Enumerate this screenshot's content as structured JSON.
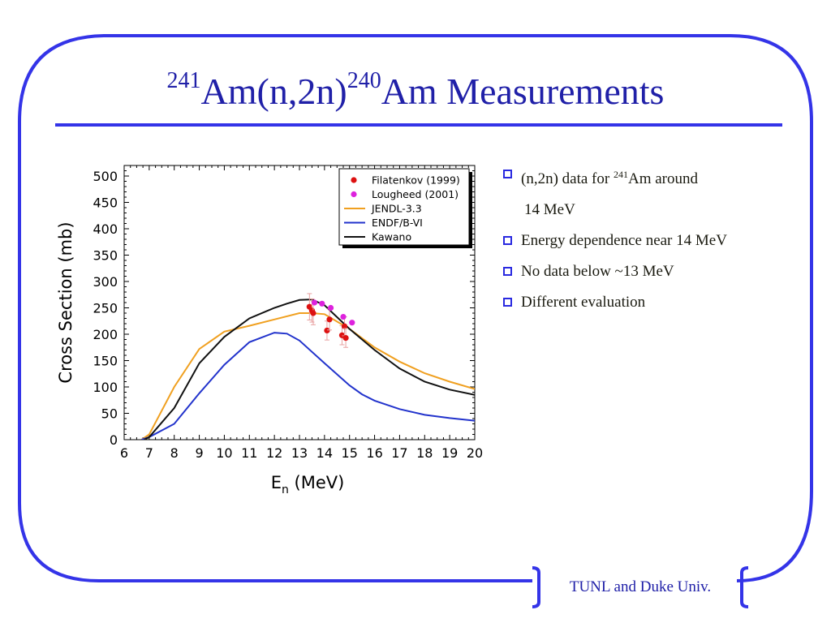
{
  "slide": {
    "title_sup1": "241",
    "title_part1": "Am(n,2n)",
    "title_sup2": "240",
    "title_part2": "Am Measurements",
    "bullets": [
      {
        "text_pre": "(n,2n) data for ",
        "sup": "241",
        "text_post": "Am around",
        "cont": "14 MeV"
      },
      {
        "text": "Energy dependence near 14 MeV"
      },
      {
        "text": "No data below ~13 MeV"
      },
      {
        "text": "Different evaluation"
      }
    ],
    "footer": "TUNL and Duke Univ.",
    "colors": {
      "title": "#2020a8",
      "frame": "#3434e8",
      "bullet_box": "#2a2ae0"
    }
  },
  "chart_data": {
    "type": "scatter",
    "xlabel_main": "E",
    "xlabel_sub": "n",
    "xlabel_rest": " (MeV)",
    "ylabel": "Cross Section (mb)",
    "xlim": [
      6,
      20
    ],
    "ylim": [
      0,
      520
    ],
    "xticks": [
      6,
      7,
      8,
      9,
      10,
      11,
      12,
      13,
      14,
      15,
      16,
      17,
      18,
      19,
      20
    ],
    "yticks": [
      0,
      50,
      100,
      150,
      200,
      250,
      300,
      350,
      400,
      450,
      500
    ],
    "legend_position": "top-right",
    "series": [
      {
        "name": "Filatenkov (1999)",
        "kind": "points",
        "color": "#dd1111",
        "points": [
          [
            13.4,
            252
          ],
          [
            13.5,
            245
          ],
          [
            13.55,
            240
          ],
          [
            14.1,
            207
          ],
          [
            14.2,
            228
          ],
          [
            14.7,
            198
          ],
          [
            14.8,
            215
          ],
          [
            14.85,
            193
          ]
        ],
        "errors": [
          25,
          22,
          22,
          18,
          20,
          18,
          18,
          18
        ]
      },
      {
        "name": "Lougheed (2001)",
        "kind": "points",
        "color": "#dd22dd",
        "points": [
          [
            13.6,
            260
          ],
          [
            13.9,
            258
          ],
          [
            14.25,
            250
          ],
          [
            14.75,
            233
          ],
          [
            15.1,
            222
          ]
        ],
        "errors": [
          0,
          0,
          0,
          0,
          0
        ]
      },
      {
        "name": "JENDL-3.3",
        "kind": "line",
        "color": "#f0a020",
        "points": [
          [
            6.7,
            0
          ],
          [
            7,
            10
          ],
          [
            8,
            100
          ],
          [
            9,
            172
          ],
          [
            10,
            205
          ],
          [
            11,
            216
          ],
          [
            12,
            228
          ],
          [
            13,
            240
          ],
          [
            13.5,
            240
          ],
          [
            14,
            238
          ],
          [
            15,
            210
          ],
          [
            16,
            175
          ],
          [
            17,
            148
          ],
          [
            18,
            126
          ],
          [
            19,
            110
          ],
          [
            20,
            96
          ]
        ]
      },
      {
        "name": "ENDF/B-VI",
        "kind": "line",
        "color": "#2233cc",
        "points": [
          [
            6.7,
            0
          ],
          [
            7,
            5
          ],
          [
            8,
            30
          ],
          [
            9,
            88
          ],
          [
            10,
            142
          ],
          [
            11,
            185
          ],
          [
            12,
            203
          ],
          [
            12.5,
            201
          ],
          [
            13,
            188
          ],
          [
            14,
            145
          ],
          [
            15,
            103
          ],
          [
            15.5,
            86
          ],
          [
            16,
            74
          ],
          [
            17,
            58
          ],
          [
            18,
            47
          ],
          [
            19,
            41
          ],
          [
            20,
            36
          ]
        ]
      },
      {
        "name": "Kawano",
        "kind": "line",
        "color": "#111111",
        "points": [
          [
            6.8,
            0
          ],
          [
            7,
            5
          ],
          [
            8,
            60
          ],
          [
            9,
            145
          ],
          [
            10,
            195
          ],
          [
            11,
            230
          ],
          [
            12,
            250
          ],
          [
            12.5,
            258
          ],
          [
            13,
            265
          ],
          [
            13.5,
            266
          ],
          [
            14,
            255
          ],
          [
            15,
            210
          ],
          [
            16,
            170
          ],
          [
            17,
            135
          ],
          [
            18,
            110
          ],
          [
            19,
            95
          ],
          [
            20,
            85
          ]
        ]
      }
    ]
  }
}
